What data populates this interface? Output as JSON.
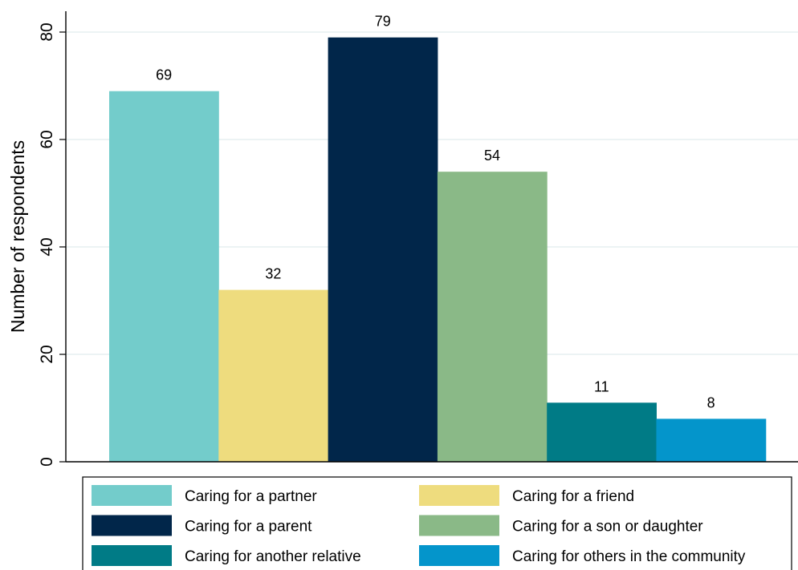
{
  "chart_data": {
    "type": "bar",
    "ylabel": "Number of respondents",
    "ylim": [
      0,
      85
    ],
    "yticks": [
      0,
      20,
      40,
      60,
      80
    ],
    "grid": true,
    "legend_position": "bottom",
    "categories": [
      "Caring for a partner",
      "Caring for a friend",
      "Caring for a parent",
      "Caring for a son or daughter",
      "Caring for another relative",
      "Caring for others in the community"
    ],
    "values": [
      69,
      32,
      79,
      54,
      11,
      8
    ],
    "colors": [
      "#73cccb",
      "#eedc7e",
      "#01264a",
      "#8ab987",
      "#007b86",
      "#0495cb"
    ]
  }
}
